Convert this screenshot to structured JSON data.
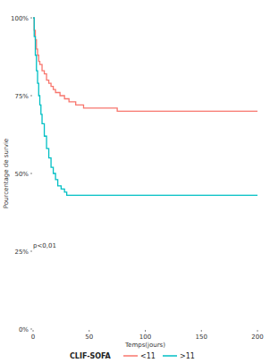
{
  "chart_data": {
    "type": "line",
    "x_label": "Temps(jours)",
    "y_label": "Pourcentage de survie",
    "annotation": "p<0,01",
    "legend_title": "CLIF-SOFA",
    "legend": "bottom",
    "line_style": "step",
    "xlim": [
      0,
      200
    ],
    "xticks": [
      0,
      50,
      100,
      150,
      200
    ],
    "ylim": [
      0,
      100
    ],
    "yticks": [
      {
        "value": 0,
        "label": "0%"
      },
      {
        "value": 25,
        "label": "25%"
      },
      {
        "value": 50,
        "label": "50%"
      },
      {
        "value": 75,
        "label": "75%"
      },
      {
        "value": 100,
        "label": "100%"
      }
    ],
    "grid": false,
    "series": [
      {
        "name": "<11",
        "color": "#F8766D",
        "x": [
          0,
          1,
          2,
          3,
          4,
          5,
          6,
          8,
          10,
          12,
          14,
          16,
          18,
          20,
          24,
          28,
          32,
          38,
          45,
          75,
          200
        ],
        "values": [
          100,
          96,
          93,
          90,
          88,
          86,
          85,
          83,
          82,
          80,
          79,
          78,
          77,
          76,
          75,
          74,
          73,
          72,
          71,
          70,
          70
        ]
      },
      {
        "name": ">11",
        "color": "#00BFC4",
        "x": [
          0,
          1,
          2,
          3,
          4,
          5,
          6,
          7,
          8,
          10,
          12,
          14,
          16,
          18,
          20,
          22,
          25,
          28,
          30,
          200
        ],
        "values": [
          100,
          94,
          88,
          83,
          79,
          75,
          72,
          69,
          66,
          62,
          58,
          55,
          52,
          50,
          48,
          46,
          45,
          44,
          43,
          43
        ]
      }
    ]
  }
}
